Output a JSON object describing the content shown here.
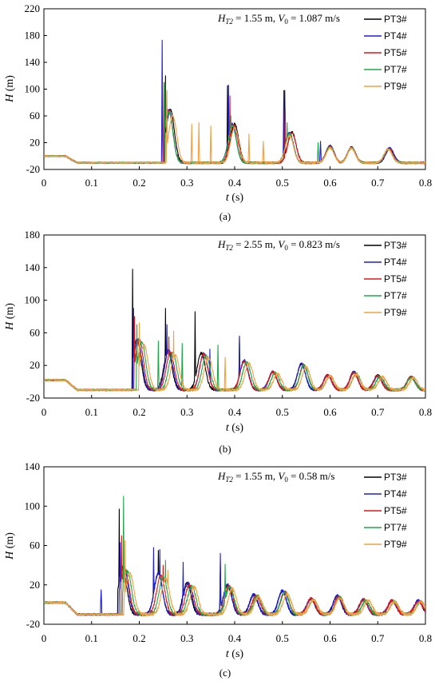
{
  "series_colors": {
    "PT3#": "#000000",
    "PT4#": "#1f1fd6",
    "PT5#": "#e01818",
    "PT7#": "#1fa84a",
    "PT9#": "#f4a040"
  },
  "chart_data": [
    {
      "type": "line",
      "panel_label": "(a)",
      "annotation": {
        "H": "H",
        "sub": "T2",
        "rest": " = 1.55 m, ",
        "V": "V",
        "vsub": "0",
        "vrest": " = 1.087 m/s"
      },
      "xlabel_var": "t",
      "xlabel_unit": " (s)",
      "ylabel_var": "H",
      "ylabel_unit": " (m)",
      "xlim": [
        0,
        0.8
      ],
      "ylim": [
        -20,
        220
      ],
      "xticks": [
        "0",
        "0.1",
        "0.2",
        "0.3",
        "0.4",
        "0.5",
        "0.6",
        "0.7",
        "0.8"
      ],
      "yticks": [
        "-20",
        "20",
        "60",
        "100",
        "140",
        "180",
        "220"
      ],
      "baseline": 0,
      "trough": -10,
      "legend": [
        "PT3#",
        "PT4#",
        "PT5#",
        "PT7#",
        "PT9#"
      ],
      "series": [
        {
          "name": "PT3#",
          "t0": 0.255,
          "spikes": [
            [
              0.255,
              120
            ],
            [
              0.385,
              105
            ],
            [
              0.505,
              98
            ]
          ],
          "humps": [
            [
              0.265,
              70
            ],
            [
              0.4,
              48
            ],
            [
              0.52,
              36
            ],
            [
              0.6,
              15
            ],
            [
              0.645,
              13
            ],
            [
              0.725,
              11
            ]
          ]
        },
        {
          "name": "PT4#",
          "t0": 0.25,
          "spikes": [
            [
              0.248,
              173
            ],
            [
              0.387,
              106
            ],
            [
              0.503,
              98
            ],
            [
              0.58,
              22
            ]
          ],
          "humps": [
            [
              0.262,
              70
            ],
            [
              0.395,
              48
            ],
            [
              0.515,
              35
            ],
            [
              0.6,
              15
            ],
            [
              0.645,
              13
            ],
            [
              0.725,
              12
            ]
          ]
        },
        {
          "name": "PT5#",
          "t0": 0.252,
          "spikes": [
            [
              0.252,
              110
            ],
            [
              0.39,
              90
            ],
            [
              0.506,
              70
            ]
          ],
          "humps": [
            [
              0.262,
              68
            ],
            [
              0.398,
              47
            ],
            [
              0.52,
              35
            ],
            [
              0.6,
              14
            ],
            [
              0.645,
              12
            ],
            [
              0.723,
              11
            ]
          ]
        },
        {
          "name": "PT7#",
          "t0": 0.255,
          "spikes": [
            [
              0.254,
              108
            ],
            [
              0.392,
              60
            ],
            [
              0.51,
              50
            ],
            [
              0.575,
              20
            ]
          ],
          "humps": [
            [
              0.262,
              66
            ],
            [
              0.395,
              45
            ],
            [
              0.515,
              33
            ],
            [
              0.6,
              13
            ],
            [
              0.645,
              12
            ],
            [
              0.722,
              10
            ]
          ]
        },
        {
          "name": "PT9#",
          "t0": 0.258,
          "spikes": [
            [
              0.258,
              98
            ],
            [
              0.31,
              48
            ],
            [
              0.325,
              50
            ],
            [
              0.35,
              45
            ],
            [
              0.43,
              33
            ],
            [
              0.46,
              22
            ]
          ],
          "humps": [
            [
              0.27,
              60
            ],
            [
              0.4,
              42
            ],
            [
              0.515,
              30
            ],
            [
              0.6,
              12
            ],
            [
              0.645,
              11
            ],
            [
              0.722,
              10
            ]
          ]
        }
      ]
    },
    {
      "type": "line",
      "panel_label": "(b)",
      "annotation": {
        "H": "H",
        "sub": "T2",
        "rest": " = 2.55 m, ",
        "V": "V",
        "vsub": "0",
        "vrest": " = 0.823 m/s"
      },
      "xlabel_var": "t",
      "xlabel_unit": " (s)",
      "ylabel_var": "H",
      "ylabel_unit": " (m)",
      "xlim": [
        0,
        0.8
      ],
      "ylim": [
        -20,
        180
      ],
      "xticks": [
        "0",
        "0.1",
        "0.2",
        "0.3",
        "0.4",
        "0.5",
        "0.6",
        "0.7",
        "0.8"
      ],
      "yticks": [
        "-20",
        "20",
        "60",
        "100",
        "140",
        "180"
      ],
      "baseline": 2,
      "trough": -10,
      "legend": [
        "PT3#",
        "PT4#",
        "PT5#",
        "PT7#",
        "PT9#"
      ],
      "series": [
        {
          "name": "PT3#",
          "t0": 0.185,
          "spikes": [
            [
              0.186,
              138
            ],
            [
              0.255,
              90
            ],
            [
              0.317,
              86
            ],
            [
              0.41,
              55
            ]
          ],
          "humps": [
            [
              0.195,
              52
            ],
            [
              0.26,
              38
            ],
            [
              0.33,
              35
            ],
            [
              0.42,
              26
            ],
            [
              0.48,
              12
            ],
            [
              0.54,
              22
            ],
            [
              0.595,
              8
            ],
            [
              0.65,
              12
            ],
            [
              0.7,
              8
            ],
            [
              0.77,
              6
            ]
          ]
        },
        {
          "name": "PT4#",
          "t0": 0.187,
          "spikes": [
            [
              0.188,
              90
            ],
            [
              0.258,
              70
            ],
            [
              0.348,
              40
            ],
            [
              0.41,
              56
            ]
          ],
          "humps": [
            [
              0.197,
              52
            ],
            [
              0.262,
              38
            ],
            [
              0.335,
              35
            ],
            [
              0.42,
              26
            ],
            [
              0.48,
              12
            ],
            [
              0.54,
              22
            ],
            [
              0.595,
              8
            ],
            [
              0.65,
              12
            ],
            [
              0.7,
              7
            ],
            [
              0.77,
              6
            ]
          ]
        },
        {
          "name": "PT5#",
          "t0": 0.19,
          "spikes": [
            [
              0.19,
              80
            ],
            [
              0.262,
              55
            ]
          ],
          "humps": [
            [
              0.2,
              52
            ],
            [
              0.265,
              36
            ],
            [
              0.335,
              34
            ],
            [
              0.42,
              25
            ],
            [
              0.48,
              12
            ],
            [
              0.545,
              21
            ],
            [
              0.595,
              8
            ],
            [
              0.65,
              11
            ],
            [
              0.7,
              7
            ],
            [
              0.77,
              6
            ]
          ]
        },
        {
          "name": "PT7#",
          "t0": 0.195,
          "spikes": [
            [
              0.195,
              70
            ],
            [
              0.24,
              50
            ],
            [
              0.29,
              47
            ],
            [
              0.365,
              45
            ]
          ],
          "humps": [
            [
              0.205,
              48
            ],
            [
              0.27,
              35
            ],
            [
              0.34,
              32
            ],
            [
              0.425,
              24
            ],
            [
              0.485,
              11
            ],
            [
              0.545,
              20
            ],
            [
              0.6,
              7
            ],
            [
              0.655,
              10
            ],
            [
              0.705,
              6
            ],
            [
              0.77,
              5
            ]
          ]
        },
        {
          "name": "PT9#",
          "t0": 0.2,
          "spikes": [
            [
              0.2,
              72
            ],
            [
              0.272,
              62
            ],
            [
              0.38,
              30
            ]
          ],
          "humps": [
            [
              0.21,
              45
            ],
            [
              0.275,
              33
            ],
            [
              0.345,
              30
            ],
            [
              0.43,
              22
            ],
            [
              0.49,
              10
            ],
            [
              0.55,
              18
            ],
            [
              0.6,
              7
            ],
            [
              0.655,
              9
            ],
            [
              0.71,
              6
            ],
            [
              0.775,
              5
            ]
          ]
        }
      ]
    },
    {
      "type": "line",
      "panel_label": "(c)",
      "annotation": {
        "H": "H",
        "sub": "T2",
        "rest": " = 1.55 m, ",
        "V": "V",
        "vsub": "0",
        "vrest": " = 0.58 m/s"
      },
      "xlabel_var": "t",
      "xlabel_unit": " (s)",
      "ylabel_var": "H",
      "ylabel_unit": " (m)",
      "xlim": [
        0,
        0.8
      ],
      "ylim": [
        -20,
        140
      ],
      "xticks": [
        "0",
        "0.1",
        "0.2",
        "0.3",
        "0.4",
        "0.5",
        "0.6",
        "0.7",
        "0.8"
      ],
      "yticks": [
        "-20",
        "20",
        "60",
        "100",
        "140"
      ],
      "baseline": 2,
      "trough": -10,
      "legend": [
        "PT3#",
        "PT4#",
        "PT5#",
        "PT7#",
        "PT9#"
      ],
      "series": [
        {
          "name": "PT3#",
          "t0": 0.155,
          "spikes": [
            [
              0.158,
              97
            ],
            [
              0.24,
              55
            ],
            [
              0.37,
              40
            ]
          ],
          "humps": [
            [
              0.165,
              38
            ],
            [
              0.24,
              32
            ],
            [
              0.3,
              22
            ],
            [
              0.385,
              20
            ],
            [
              0.44,
              10
            ],
            [
              0.5,
              14
            ],
            [
              0.56,
              6
            ],
            [
              0.615,
              9
            ],
            [
              0.67,
              5
            ],
            [
              0.73,
              4
            ],
            [
              0.785,
              4
            ]
          ]
        },
        {
          "name": "PT4#",
          "t0": 0.158,
          "spikes": [
            [
              0.12,
              15
            ],
            [
              0.16,
              63
            ],
            [
              0.23,
              58
            ],
            [
              0.243,
              56
            ],
            [
              0.292,
              43
            ],
            [
              0.37,
              52
            ]
          ],
          "humps": [
            [
              0.168,
              38
            ],
            [
              0.24,
              32
            ],
            [
              0.302,
              22
            ],
            [
              0.385,
              20
            ],
            [
              0.44,
              10
            ],
            [
              0.5,
              14
            ],
            [
              0.56,
              6
            ],
            [
              0.615,
              9
            ],
            [
              0.67,
              5
            ],
            [
              0.73,
              4
            ],
            [
              0.785,
              4
            ]
          ]
        },
        {
          "name": "PT5#",
          "t0": 0.162,
          "spikes": [
            [
              0.163,
              70
            ],
            [
              0.25,
              40
            ]
          ],
          "humps": [
            [
              0.17,
              36
            ],
            [
              0.245,
              30
            ],
            [
              0.305,
              20
            ],
            [
              0.388,
              19
            ],
            [
              0.445,
              9
            ],
            [
              0.505,
              13
            ],
            [
              0.56,
              6
            ],
            [
              0.618,
              8
            ],
            [
              0.67,
              5
            ],
            [
              0.73,
              4
            ],
            [
              0.785,
              3
            ]
          ]
        },
        {
          "name": "PT7#",
          "t0": 0.165,
          "spikes": [
            [
              0.167,
              110
            ],
            [
              0.255,
              45
            ],
            [
              0.38,
              41
            ]
          ],
          "humps": [
            [
              0.175,
              34
            ],
            [
              0.25,
              28
            ],
            [
              0.31,
              19
            ],
            [
              0.39,
              18
            ],
            [
              0.448,
              9
            ],
            [
              0.505,
              12
            ],
            [
              0.565,
              5
            ],
            [
              0.62,
              8
            ],
            [
              0.675,
              4
            ],
            [
              0.735,
              3
            ],
            [
              0.79,
              3
            ]
          ]
        },
        {
          "name": "PT9#",
          "t0": 0.168,
          "spikes": [
            [
              0.17,
              65
            ],
            [
              0.26,
              35
            ]
          ],
          "humps": [
            [
              0.18,
              32
            ],
            [
              0.255,
              26
            ],
            [
              0.315,
              18
            ],
            [
              0.395,
              16
            ],
            [
              0.45,
              8
            ],
            [
              0.51,
              11
            ],
            [
              0.565,
              5
            ],
            [
              0.62,
              7
            ],
            [
              0.68,
              4
            ],
            [
              0.735,
              3
            ],
            [
              0.79,
              3
            ]
          ]
        }
      ]
    }
  ]
}
